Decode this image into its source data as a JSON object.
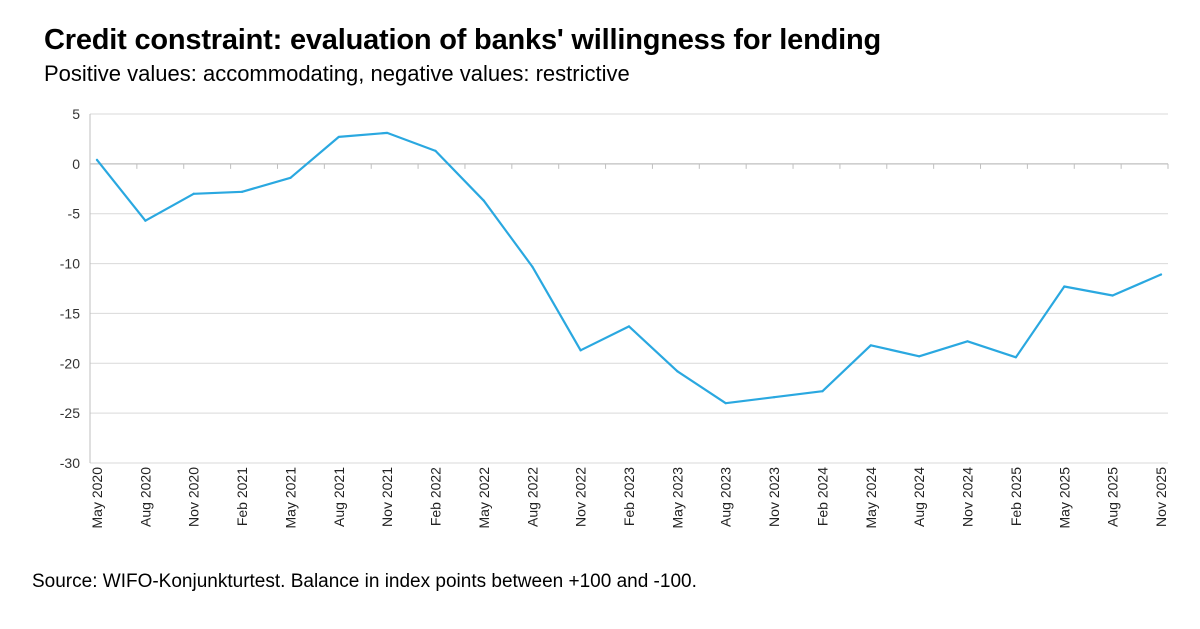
{
  "title": "Credit constraint: evaluation of banks' willingness for lending",
  "subtitle": "Positive values: accommodating, negative values: restrictive",
  "source": "Source: WIFO-Konjunkturtest. Balance in index points between +100 and -100.",
  "colors": {
    "line": "#2aa8e0",
    "grid": "#d9d9d9",
    "axis": "#bfbfbf"
  },
  "chart_data": {
    "type": "line",
    "categories": [
      "May 2020",
      "Aug 2020",
      "Nov 2020",
      "Feb 2021",
      "May 2021",
      "Aug 2021",
      "Nov 2021",
      "Feb 2022",
      "May 2022",
      "Aug 2022",
      "Nov 2022",
      "Feb 2023",
      "May 2023",
      "Aug 2023",
      "Nov 2023",
      "Feb 2024",
      "May 2024",
      "Aug 2024",
      "Nov 2024",
      "Feb 2025",
      "May 2025",
      "Aug 2025",
      "Nov 2025"
    ],
    "series": [
      {
        "values": [
          0.4,
          -5.7,
          -3.0,
          -2.8,
          -1.4,
          2.7,
          3.1,
          1.3,
          -3.7,
          -10.3,
          -18.7,
          -16.3,
          -20.8,
          -24.0,
          -23.4,
          -22.8,
          -18.2,
          -19.3,
          -17.8,
          -19.4,
          -12.3,
          -13.2,
          -11.1
        ]
      }
    ],
    "ylim": [
      -30,
      5
    ],
    "yticks": [
      5,
      0,
      -5,
      -10,
      -15,
      -20,
      -25,
      -30
    ],
    "xlabel": "",
    "ylabel": "",
    "grid": true
  }
}
